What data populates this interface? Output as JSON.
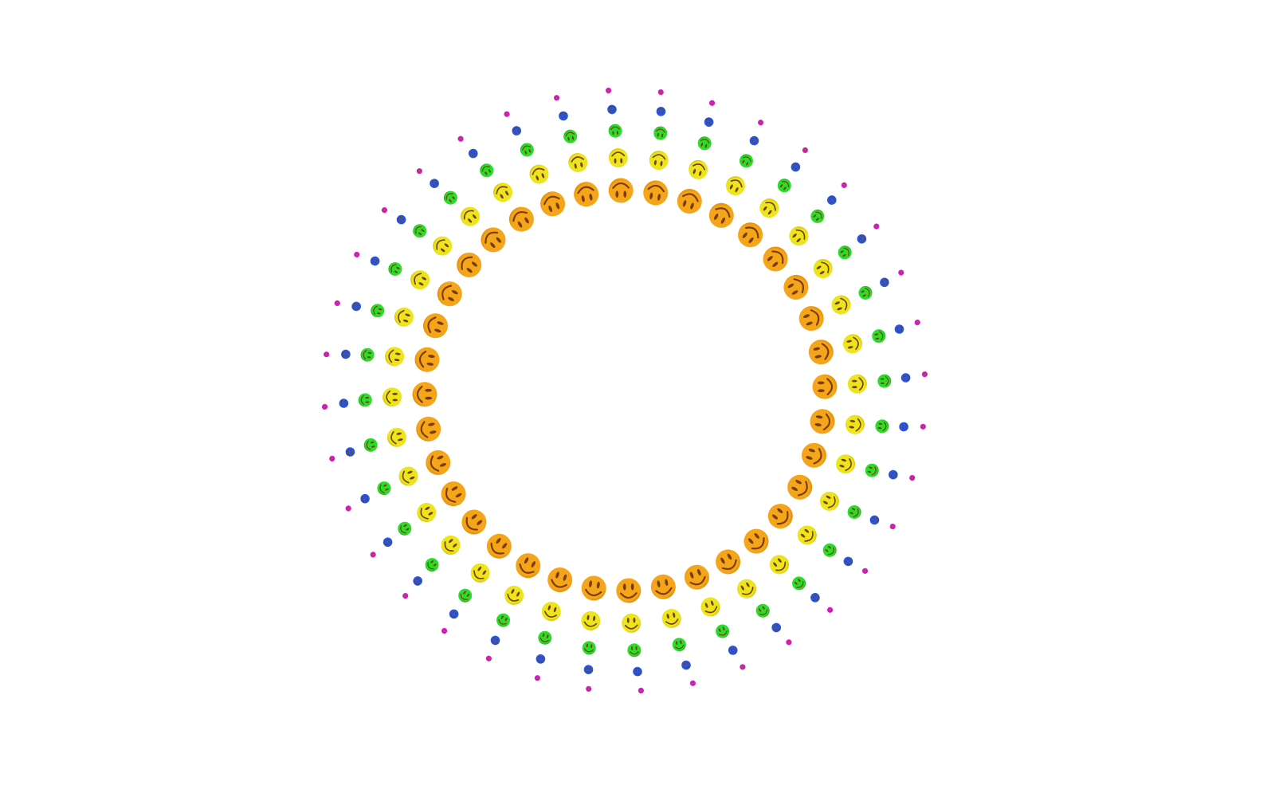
{
  "pattern": {
    "items_per_ring": 36,
    "feature_color": "#7a3d08",
    "rings": [
      {
        "name": "orange",
        "color": "#f4a51a",
        "shade": "#e08a00"
      },
      {
        "name": "yellow",
        "color": "#ebe51e",
        "shade": "#c9c000"
      },
      {
        "name": "green",
        "color": "#2bdc2b",
        "shade": "#13a813"
      },
      {
        "name": "blue",
        "color": "#2457e8",
        "shade": "#1238b0"
      },
      {
        "name": "magenta",
        "color": "#dc22cc",
        "shade": "#a8109a"
      }
    ],
    "icon": "smiley-face-icon"
  }
}
